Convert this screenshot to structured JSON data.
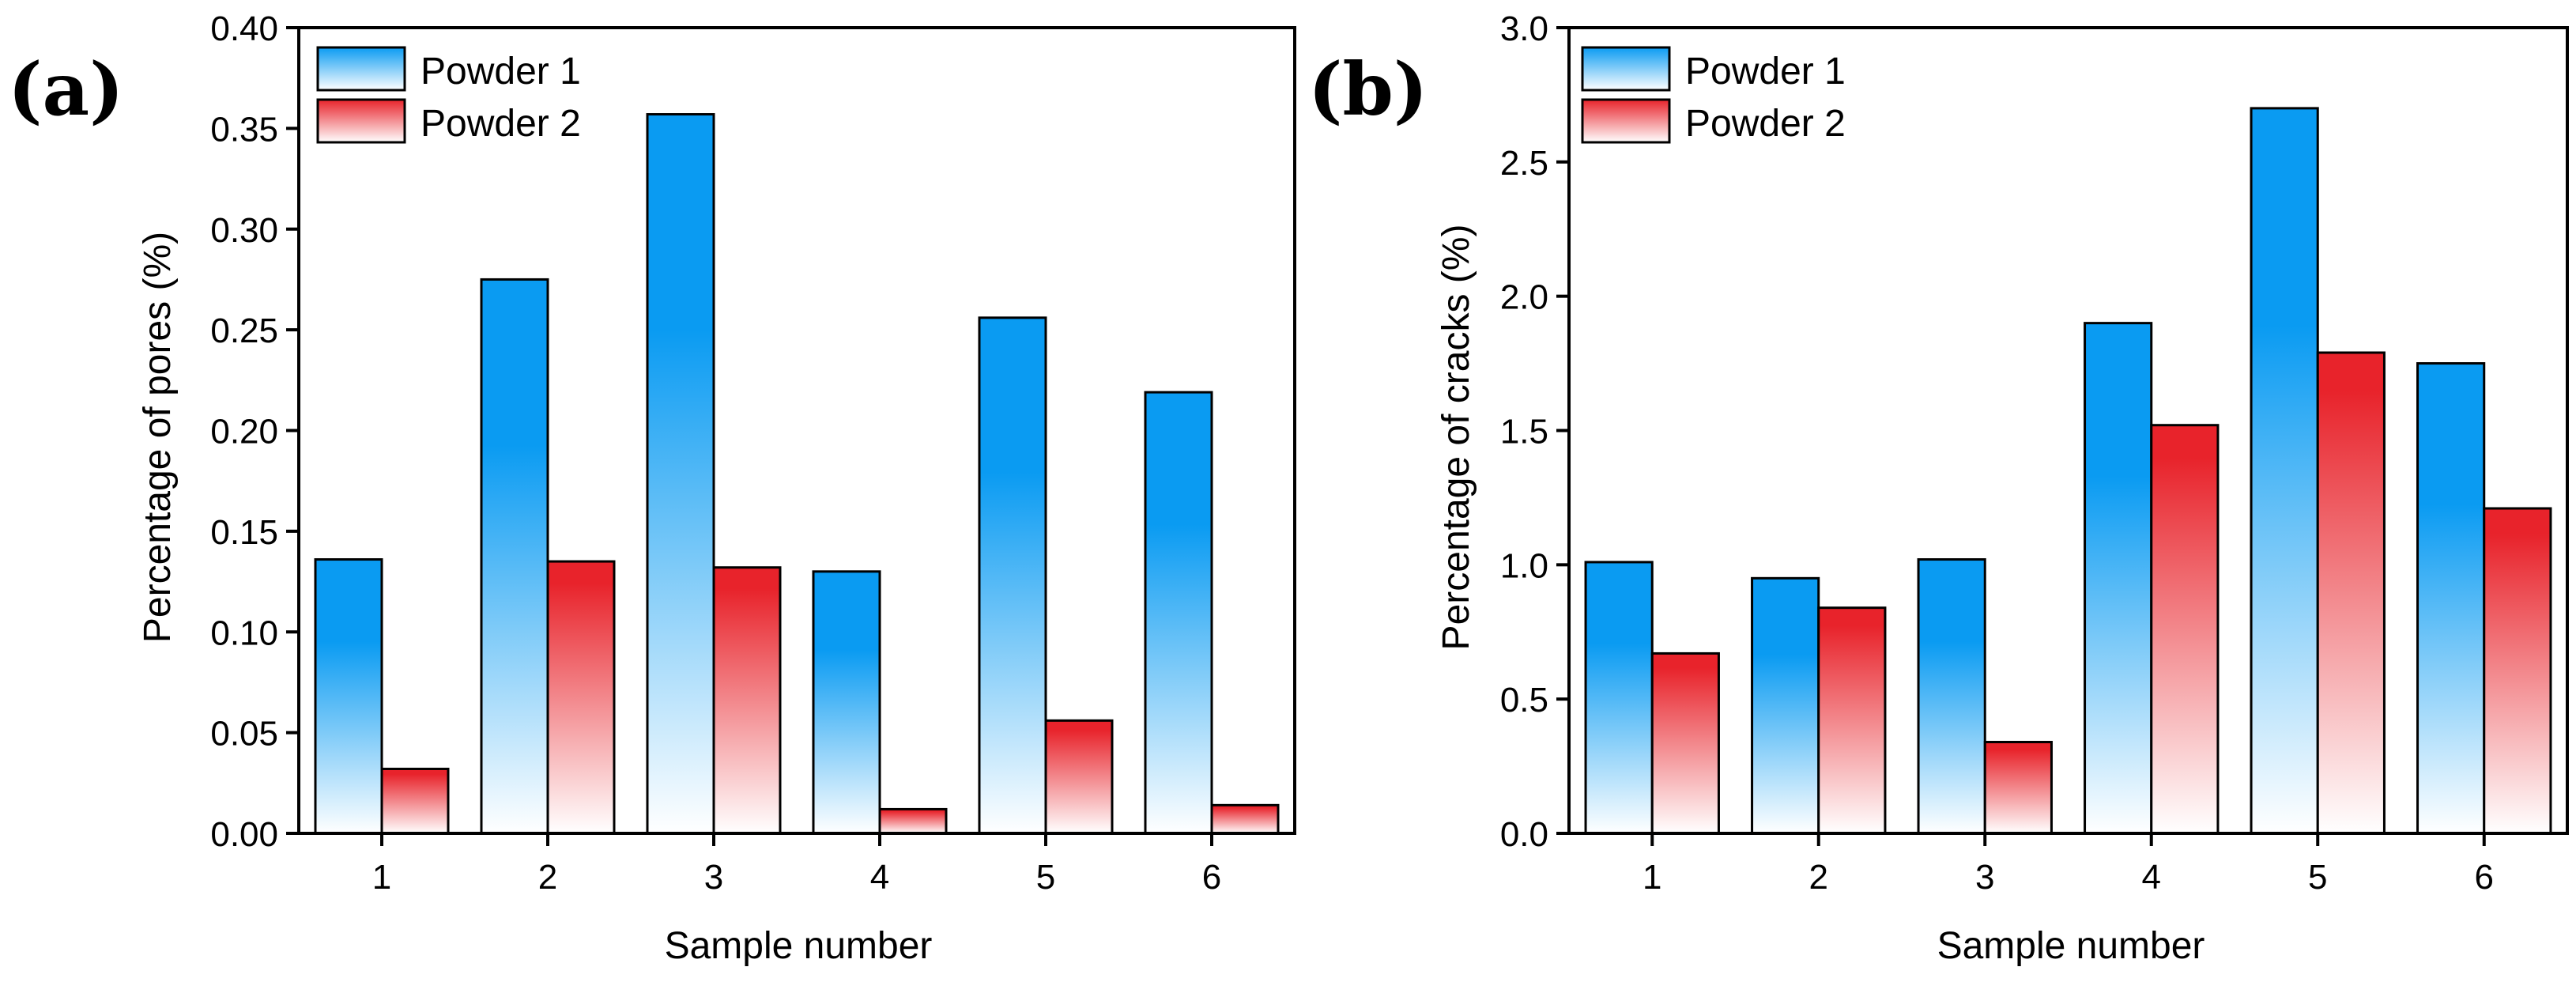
{
  "colors": {
    "powder1_top": "#0a9bf2",
    "powder1_bottom": "#ffffff",
    "powder2_top": "#e8232b",
    "powder2_bottom": "#ffffff",
    "axis": "#000000"
  },
  "chart_data": [
    {
      "type": "bar",
      "panel_label": "(a)",
      "categories": [
        "1",
        "2",
        "3",
        "4",
        "5",
        "6"
      ],
      "series": [
        {
          "name": "Powder 1",
          "values": [
            0.136,
            0.275,
            0.357,
            0.13,
            0.256,
            0.219
          ]
        },
        {
          "name": "Powder 2",
          "values": [
            0.032,
            0.135,
            0.132,
            0.012,
            0.056,
            0.014
          ]
        }
      ],
      "xlabel": "Sample number",
      "ylabel": "Percentage of pores (%)",
      "ylim": [
        0,
        0.4
      ],
      "yticks": [
        "0.00",
        "0.05",
        "0.10",
        "0.15",
        "0.20",
        "0.25",
        "0.30",
        "0.35",
        "0.40"
      ],
      "legend": "top-left",
      "grid": false
    },
    {
      "type": "bar",
      "panel_label": "(b)",
      "categories": [
        "1",
        "2",
        "3",
        "4",
        "5",
        "6"
      ],
      "series": [
        {
          "name": "Powder 1",
          "values": [
            1.01,
            0.95,
            1.02,
            1.9,
            2.7,
            1.75
          ]
        },
        {
          "name": "Powder 2",
          "values": [
            0.67,
            0.84,
            0.34,
            1.52,
            1.79,
            1.21
          ]
        }
      ],
      "xlabel": "Sample number",
      "ylabel": "Percentage of cracks (%)",
      "ylim": [
        0,
        3.0
      ],
      "yticks": [
        "0.0",
        "0.5",
        "1.0",
        "1.5",
        "2.0",
        "2.5",
        "3.0"
      ],
      "legend": "top-left",
      "grid": false
    }
  ]
}
